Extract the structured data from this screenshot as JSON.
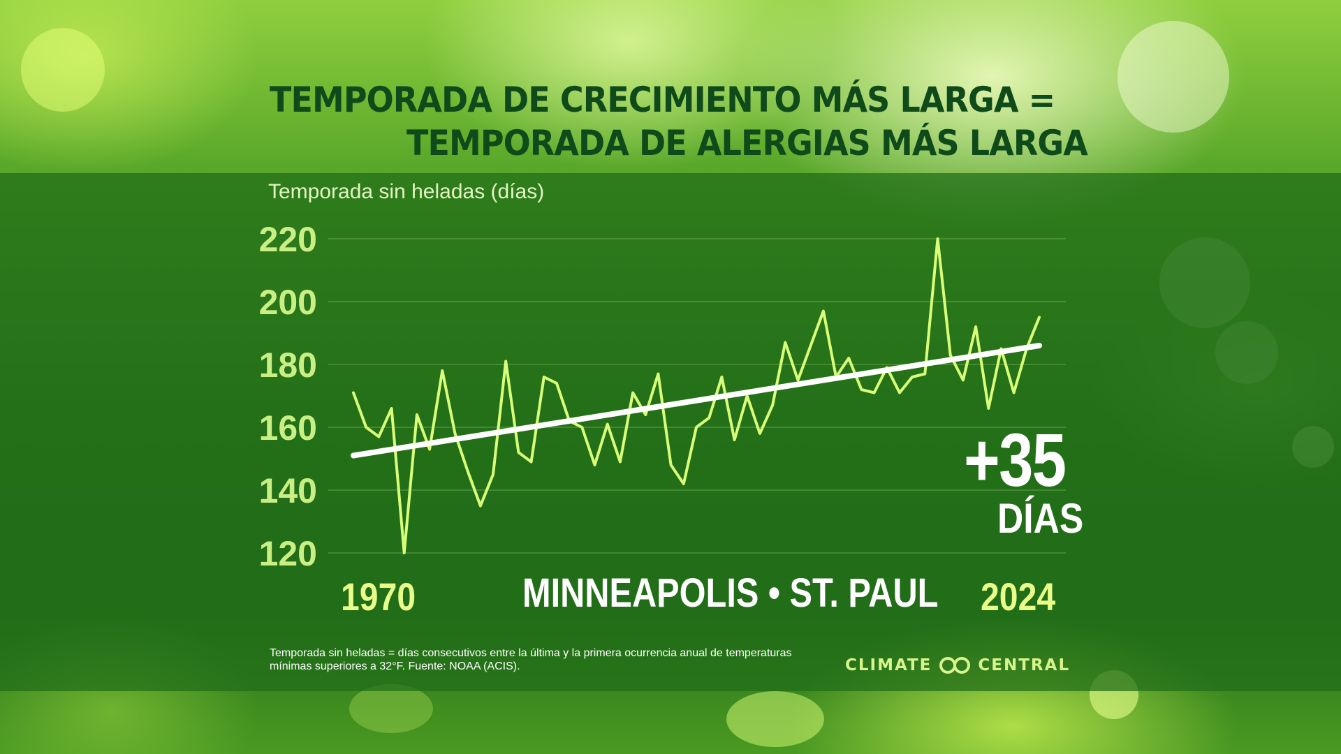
{
  "title": {
    "line1": "TEMPORADA DE CRECIMIENTO MÁS LARGA =",
    "line2": "TEMPORADA DE ALERGIAS MÁS LARGA"
  },
  "colors": {
    "title": "#0f4a1a",
    "data_line": "#d9ff7a",
    "trend_line": "#ffffff",
    "tick_labels": "#c9ef84",
    "year_labels": "#e9ff8a",
    "brand": "#d8f48c"
  },
  "chart_data": {
    "type": "line",
    "title": "TEMPORADA DE CRECIMIENTO MÁS LARGA = TEMPORADA DE ALERGIAS MÁS LARGA",
    "ylabel": "Temporada sin heladas (días)",
    "xlabel": "",
    "ylim": [
      120,
      220
    ],
    "yticks": [
      120,
      140,
      160,
      180,
      200,
      220
    ],
    "xlim": [
      1970,
      2024
    ],
    "x_tick_labels": [
      "1970",
      "2024"
    ],
    "grid": true,
    "location": "MINNEAPOLIS • ST. PAUL",
    "annotation": {
      "value": "+35",
      "unit": "DÍAS"
    },
    "x": [
      1970,
      1971,
      1972,
      1973,
      1974,
      1975,
      1976,
      1977,
      1978,
      1979,
      1980,
      1981,
      1982,
      1983,
      1984,
      1985,
      1986,
      1987,
      1988,
      1989,
      1990,
      1991,
      1992,
      1993,
      1994,
      1995,
      1996,
      1997,
      1998,
      1999,
      2000,
      2001,
      2002,
      2003,
      2004,
      2005,
      2006,
      2007,
      2008,
      2009,
      2010,
      2011,
      2012,
      2013,
      2014,
      2015,
      2016,
      2017,
      2018,
      2019,
      2020,
      2021,
      2022,
      2023,
      2024
    ],
    "series": [
      {
        "values": [
          171,
          160,
          157,
          166,
          120,
          164,
          153,
          178,
          158,
          146,
          135,
          145,
          181,
          152,
          149,
          176,
          174,
          162,
          160,
          148,
          161,
          149,
          171,
          164,
          177,
          148,
          142,
          160,
          163,
          176,
          156,
          170,
          158,
          167,
          187,
          175,
          186,
          197,
          176,
          182,
          172,
          171,
          179,
          171,
          176,
          177,
          220,
          183,
          175,
          192,
          166,
          185,
          171,
          185,
          195
        ]
      },
      {
        "name": "trend",
        "start": 151,
        "end": 186
      }
    ]
  },
  "footnote": "Temporada sin heladas = días consecutivos entre la última y la primera ocurrencia anual de temperaturas mínimas superiores a 32°F. Fuente: NOAA (ACIS).",
  "brand": {
    "left": "CLIMATE",
    "right": "CENTRAL",
    "logo_icon": "interlinked-rings-icon"
  }
}
